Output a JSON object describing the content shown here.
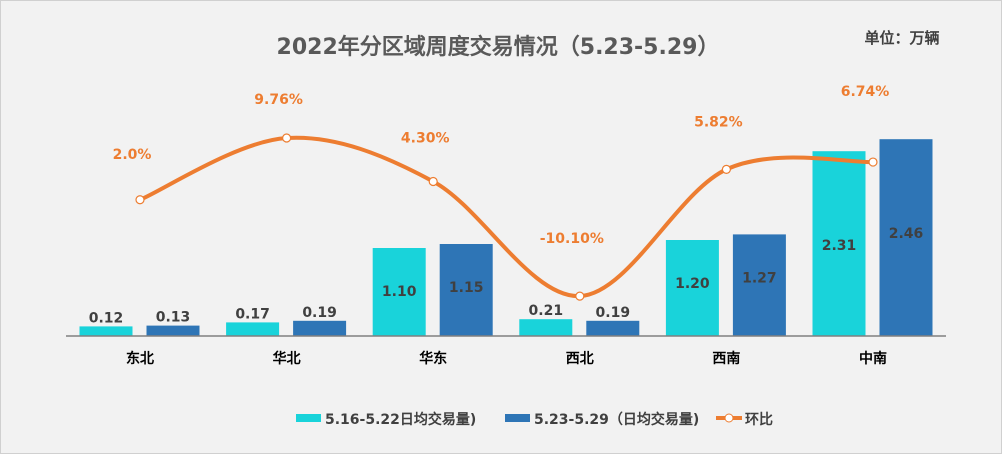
{
  "chart_data": {
    "type": "bar",
    "title": "2022年分区域周度交易情况（5.23-5.29）",
    "unit_label": "单位：万辆",
    "categories": [
      "东北",
      "华北",
      "华东",
      "西北",
      "西南",
      "中南"
    ],
    "series": [
      {
        "name": "5.16-5.22日均交易量)",
        "type": "bar",
        "color": "#19d3da",
        "values": [
          0.12,
          0.17,
          1.1,
          0.21,
          1.2,
          2.31
        ],
        "labels": [
          "0.12",
          "0.17",
          "1.10",
          "0.21",
          "1.20",
          "2.31"
        ]
      },
      {
        "name": "5.23-5.29（日均交易量)",
        "type": "bar",
        "color": "#2e75b6",
        "values": [
          0.13,
          0.19,
          1.15,
          0.19,
          1.27,
          2.46
        ],
        "labels": [
          "0.13",
          "0.19",
          "1.15",
          "0.19",
          "1.27",
          "2.46"
        ]
      },
      {
        "name": "环比",
        "type": "line",
        "color": "#ed7d31",
        "axis": "secondary",
        "values": [
          2.0,
          9.76,
          4.3,
          -10.1,
          5.82,
          6.74
        ],
        "labels": [
          "2.0%",
          "9.76%",
          "4.30%",
          "-10.10%",
          "5.82%",
          "6.74%"
        ]
      }
    ],
    "legend_position": "bottom",
    "grid": false
  }
}
